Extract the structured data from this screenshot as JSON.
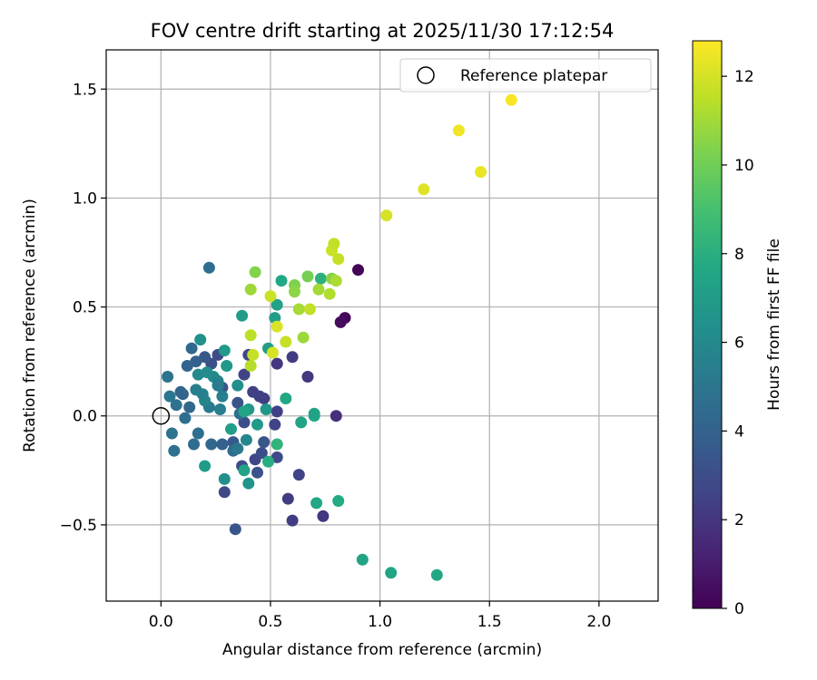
{
  "chart_data": {
    "type": "scatter",
    "title": "FOV centre drift starting at 2025/11/30 17:12:54",
    "xlabel": "Angular distance from reference (arcmin)",
    "ylabel": "Rotation from reference (arcmin)",
    "xlim": [
      -0.25,
      2.27
    ],
    "ylim": [
      -0.85,
      1.68
    ],
    "grid": true,
    "xticks": [
      0.0,
      0.5,
      1.0,
      1.5,
      2.0
    ],
    "xtick_labels": [
      "0.0",
      "0.5",
      "1.0",
      "1.5",
      "2.0"
    ],
    "yticks": [
      -0.5,
      0.0,
      0.5,
      1.0,
      1.5
    ],
    "ytick_labels": [
      "−0.5",
      "0.0",
      "0.5",
      "1.0",
      "1.5"
    ],
    "legend": {
      "placement": "top-right",
      "label": "Reference platepar"
    },
    "reference": {
      "x": 0.0,
      "y": 0.0
    },
    "colorbar": {
      "label": "Hours from first FF file",
      "range": [
        0,
        12.8
      ],
      "ticks": [
        0,
        2,
        4,
        6,
        8,
        10,
        12
      ],
      "tick_labels": [
        "0",
        "2",
        "4",
        "6",
        "8",
        "10",
        "12"
      ],
      "colormap": "viridis",
      "colormap_stops": [
        "#440154",
        "#482475",
        "#414487",
        "#355f8d",
        "#2a788e",
        "#21918c",
        "#22a884",
        "#44bf70",
        "#7ad151",
        "#bddf26",
        "#fde725"
      ]
    },
    "points": [
      {
        "x": 0.9,
        "y": 0.67,
        "h": 0.1
      },
      {
        "x": 0.84,
        "y": 0.45,
        "h": 0.2
      },
      {
        "x": 0.82,
        "y": 0.43,
        "h": 0.4
      },
      {
        "x": 0.8,
        "y": 0.0,
        "h": 1.7
      },
      {
        "x": 0.74,
        "y": -0.46,
        "h": 2.0
      },
      {
        "x": 0.67,
        "y": 0.18,
        "h": 2.0
      },
      {
        "x": 0.6,
        "y": 0.27,
        "h": 2.2
      },
      {
        "x": 0.63,
        "y": -0.27,
        "h": 2.5
      },
      {
        "x": 0.58,
        "y": -0.38,
        "h": 2.3
      },
      {
        "x": 0.6,
        "y": -0.48,
        "h": 2.3
      },
      {
        "x": 0.53,
        "y": 0.24,
        "h": 2.0
      },
      {
        "x": 0.52,
        "y": -0.04,
        "h": 2.5
      },
      {
        "x": 0.53,
        "y": 0.02,
        "h": 2.4
      },
      {
        "x": 0.53,
        "y": -0.19,
        "h": 2.9
      },
      {
        "x": 0.47,
        "y": 0.08,
        "h": 2.3
      },
      {
        "x": 0.45,
        "y": 0.09,
        "h": 2.4
      },
      {
        "x": 0.42,
        "y": 0.11,
        "h": 2.4
      },
      {
        "x": 0.4,
        "y": 0.28,
        "h": 2.6
      },
      {
        "x": 0.38,
        "y": 0.19,
        "h": 2.5
      },
      {
        "x": 0.43,
        "y": -0.2,
        "h": 2.7
      },
      {
        "x": 0.46,
        "y": -0.17,
        "h": 3.0
      },
      {
        "x": 0.47,
        "y": -0.12,
        "h": 3.4
      },
      {
        "x": 0.44,
        "y": -0.26,
        "h": 3.2
      },
      {
        "x": 0.38,
        "y": -0.03,
        "h": 3.0
      },
      {
        "x": 0.37,
        "y": -0.23,
        "h": 2.9
      },
      {
        "x": 0.35,
        "y": 0.06,
        "h": 3.3
      },
      {
        "x": 0.29,
        "y": -0.35,
        "h": 2.8
      },
      {
        "x": 0.34,
        "y": -0.52,
        "h": 3.4
      },
      {
        "x": 0.33,
        "y": -0.12,
        "h": 3.6
      },
      {
        "x": 0.28,
        "y": 0.13,
        "h": 3.4
      },
      {
        "x": 0.26,
        "y": 0.28,
        "h": 2.9
      },
      {
        "x": 0.23,
        "y": 0.24,
        "h": 3.1
      },
      {
        "x": 0.22,
        "y": 0.68,
        "h": 4.6
      },
      {
        "x": 0.2,
        "y": 0.27,
        "h": 3.5
      },
      {
        "x": 0.16,
        "y": 0.25,
        "h": 3.9
      },
      {
        "x": 0.14,
        "y": 0.31,
        "h": 4.3
      },
      {
        "x": 0.12,
        "y": 0.23,
        "h": 4.1
      },
      {
        "x": 0.1,
        "y": 0.1,
        "h": 4.0
      },
      {
        "x": 0.13,
        "y": 0.04,
        "h": 4.3
      },
      {
        "x": 0.09,
        "y": 0.11,
        "h": 4.2
      },
      {
        "x": 0.11,
        "y": -0.01,
        "h": 4.6
      },
      {
        "x": 0.07,
        "y": 0.05,
        "h": 4.8
      },
      {
        "x": 0.04,
        "y": 0.09,
        "h": 5.0
      },
      {
        "x": 0.03,
        "y": 0.18,
        "h": 4.9
      },
      {
        "x": 0.05,
        "y": -0.08,
        "h": 4.9
      },
      {
        "x": 0.06,
        "y": -0.16,
        "h": 4.7
      },
      {
        "x": 0.15,
        "y": -0.13,
        "h": 4.5
      },
      {
        "x": 0.17,
        "y": -0.08,
        "h": 4.6
      },
      {
        "x": 0.23,
        "y": -0.13,
        "h": 4.3
      },
      {
        "x": 0.28,
        "y": -0.13,
        "h": 4.0
      },
      {
        "x": 0.33,
        "y": -0.16,
        "h": 4.5
      },
      {
        "x": 0.35,
        "y": -0.15,
        "h": 5.1
      },
      {
        "x": 0.39,
        "y": -0.11,
        "h": 5.9
      },
      {
        "x": 0.36,
        "y": 0.01,
        "h": 4.6
      },
      {
        "x": 0.27,
        "y": 0.03,
        "h": 5.4
      },
      {
        "x": 0.22,
        "y": 0.04,
        "h": 5.2
      },
      {
        "x": 0.2,
        "y": 0.07,
        "h": 5.8
      },
      {
        "x": 0.19,
        "y": 0.1,
        "h": 5.6
      },
      {
        "x": 0.16,
        "y": 0.12,
        "h": 5.5
      },
      {
        "x": 0.17,
        "y": 0.19,
        "h": 6.0
      },
      {
        "x": 0.18,
        "y": 0.35,
        "h": 6.4
      },
      {
        "x": 0.21,
        "y": 0.2,
        "h": 6.2
      },
      {
        "x": 0.24,
        "y": 0.18,
        "h": 6.1
      },
      {
        "x": 0.26,
        "y": 0.16,
        "h": 5.7
      },
      {
        "x": 0.26,
        "y": 0.14,
        "h": 5.3
      },
      {
        "x": 0.28,
        "y": 0.09,
        "h": 5.5
      },
      {
        "x": 0.3,
        "y": 0.23,
        "h": 6.8
      },
      {
        "x": 0.29,
        "y": 0.3,
        "h": 6.9
      },
      {
        "x": 0.35,
        "y": 0.14,
        "h": 6.3
      },
      {
        "x": 0.37,
        "y": 0.46,
        "h": 7.0
      },
      {
        "x": 0.4,
        "y": 0.03,
        "h": 6.8
      },
      {
        "x": 0.44,
        "y": -0.04,
        "h": 6.9
      },
      {
        "x": 0.48,
        "y": 0.03,
        "h": 6.7
      },
      {
        "x": 0.49,
        "y": 0.31,
        "h": 7.1
      },
      {
        "x": 0.52,
        "y": 0.45,
        "h": 7.1
      },
      {
        "x": 0.53,
        "y": 0.51,
        "h": 7.3
      },
      {
        "x": 0.55,
        "y": 0.62,
        "h": 7.6
      },
      {
        "x": 0.57,
        "y": 0.08,
        "h": 7.6
      },
      {
        "x": 0.38,
        "y": 0.02,
        "h": 7.5
      },
      {
        "x": 0.38,
        "y": -0.25,
        "h": 7.4
      },
      {
        "x": 0.29,
        "y": -0.29,
        "h": 6.3
      },
      {
        "x": 0.4,
        "y": -0.31,
        "h": 6.6
      },
      {
        "x": 0.32,
        "y": -0.06,
        "h": 7.2
      },
      {
        "x": 0.2,
        "y": -0.23,
        "h": 7.0
      },
      {
        "x": 0.49,
        "y": -0.21,
        "h": 7.9
      },
      {
        "x": 0.53,
        "y": -0.13,
        "h": 8.3
      },
      {
        "x": 0.64,
        "y": -0.03,
        "h": 7.4
      },
      {
        "x": 0.7,
        "y": 0.0,
        "h": 7.7
      },
      {
        "x": 0.7,
        "y": 0.01,
        "h": 7.4
      },
      {
        "x": 0.73,
        "y": 0.63,
        "h": 8.1
      },
      {
        "x": 0.71,
        "y": -0.4,
        "h": 7.6
      },
      {
        "x": 0.81,
        "y": -0.39,
        "h": 7.8
      },
      {
        "x": 0.92,
        "y": -0.66,
        "h": 7.4
      },
      {
        "x": 1.05,
        "y": -0.72,
        "h": 7.5
      },
      {
        "x": 1.26,
        "y": -0.73,
        "h": 7.6
      },
      {
        "x": 0.43,
        "y": 0.66,
        "h": 10.4
      },
      {
        "x": 0.41,
        "y": 0.58,
        "h": 10.9
      },
      {
        "x": 0.61,
        "y": 0.6,
        "h": 10.3
      },
      {
        "x": 0.61,
        "y": 0.57,
        "h": 10.6
      },
      {
        "x": 0.67,
        "y": 0.64,
        "h": 10.1
      },
      {
        "x": 0.72,
        "y": 0.58,
        "h": 11.0
      },
      {
        "x": 0.77,
        "y": 0.56,
        "h": 11.3
      },
      {
        "x": 0.78,
        "y": 0.63,
        "h": 10.5
      },
      {
        "x": 0.8,
        "y": 0.62,
        "h": 11.2
      },
      {
        "x": 0.63,
        "y": 0.49,
        "h": 11.1
      },
      {
        "x": 0.68,
        "y": 0.49,
        "h": 11.6
      },
      {
        "x": 0.65,
        "y": 0.36,
        "h": 10.9
      },
      {
        "x": 0.57,
        "y": 0.34,
        "h": 11.7
      },
      {
        "x": 0.53,
        "y": 0.41,
        "h": 12.1
      },
      {
        "x": 0.5,
        "y": 0.55,
        "h": 11.8
      },
      {
        "x": 0.41,
        "y": 0.37,
        "h": 11.5
      },
      {
        "x": 0.42,
        "y": 0.28,
        "h": 11.7
      },
      {
        "x": 0.41,
        "y": 0.23,
        "h": 11.4
      },
      {
        "x": 0.51,
        "y": 0.29,
        "h": 12.0
      },
      {
        "x": 0.78,
        "y": 0.76,
        "h": 11.8
      },
      {
        "x": 0.79,
        "y": 0.79,
        "h": 11.6
      },
      {
        "x": 0.81,
        "y": 0.72,
        "h": 11.7
      },
      {
        "x": 1.03,
        "y": 0.92,
        "h": 12.0
      },
      {
        "x": 1.2,
        "y": 1.04,
        "h": 12.2
      },
      {
        "x": 1.36,
        "y": 1.31,
        "h": 12.5
      },
      {
        "x": 1.46,
        "y": 1.12,
        "h": 12.4
      },
      {
        "x": 1.6,
        "y": 1.45,
        "h": 12.7
      }
    ]
  }
}
